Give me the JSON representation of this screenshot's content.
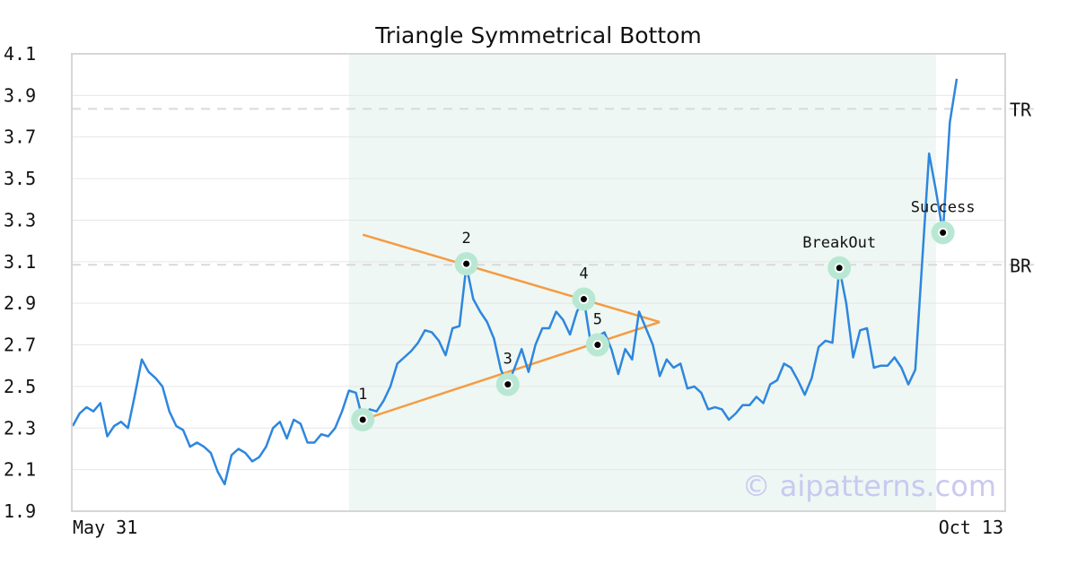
{
  "chart_data": {
    "type": "line",
    "title": "Triangle Symmetrical Bottom",
    "watermark": "© aipatterns.com",
    "ylim": [
      1.9,
      4.1
    ],
    "y_ticks": [
      "4.1",
      "3.9",
      "3.7",
      "3.5",
      "3.3",
      "3.1",
      "2.9",
      "2.7",
      "2.5",
      "2.3",
      "2.1",
      "1.9"
    ],
    "x_tick_labels": {
      "start": "May 31",
      "end": "Oct 13"
    },
    "grid": true,
    "series_color": "#2e86de",
    "values": [
      2.31,
      2.37,
      2.4,
      2.38,
      2.42,
      2.26,
      2.31,
      2.33,
      2.3,
      2.46,
      2.63,
      2.57,
      2.54,
      2.5,
      2.38,
      2.31,
      2.29,
      2.21,
      2.23,
      2.21,
      2.18,
      2.09,
      2.03,
      2.17,
      2.2,
      2.18,
      2.14,
      2.16,
      2.21,
      2.3,
      2.33,
      2.25,
      2.34,
      2.32,
      2.23,
      2.23,
      2.27,
      2.26,
      2.3,
      2.38,
      2.48,
      2.47,
      2.34,
      2.39,
      2.38,
      2.43,
      2.5,
      2.61,
      2.64,
      2.67,
      2.71,
      2.77,
      2.76,
      2.72,
      2.65,
      2.78,
      2.79,
      3.08,
      2.92,
      2.86,
      2.81,
      2.73,
      2.58,
      2.51,
      2.59,
      2.68,
      2.57,
      2.7,
      2.78,
      2.78,
      2.86,
      2.82,
      2.75,
      2.86,
      2.92,
      2.71,
      2.74,
      2.76,
      2.68,
      2.56,
      2.68,
      2.63,
      2.86,
      2.78,
      2.7,
      2.55,
      2.63,
      2.59,
      2.61,
      2.49,
      2.5,
      2.47,
      2.39,
      2.4,
      2.39,
      2.34,
      2.37,
      2.41,
      2.41,
      2.45,
      2.42,
      2.51,
      2.53,
      2.61,
      2.59,
      2.53,
      2.46,
      2.54,
      2.69,
      2.72,
      2.71,
      3.07,
      2.9,
      2.64,
      2.77,
      2.78,
      2.59,
      2.6,
      2.6,
      2.64,
      2.59,
      2.51,
      2.58,
      3.1,
      3.62,
      3.44,
      3.24,
      3.77,
      3.98
    ],
    "pattern_region": {
      "start_index": 40,
      "end_index": 125,
      "color": "#eef7f3"
    },
    "horizontal_lines": [
      {
        "label": "TR",
        "y": 3.835,
        "color": "#d9d9d9"
      },
      {
        "label": "BR",
        "y": 3.085,
        "color": "#d9d9d9"
      }
    ],
    "trend_lines": {
      "color": "#f59b42",
      "upper": [
        {
          "x": 42,
          "y": 3.23
        },
        {
          "x": 85,
          "y": 2.81
        }
      ],
      "lower": [
        {
          "x": 42,
          "y": 2.34
        },
        {
          "x": 85,
          "y": 2.81
        }
      ]
    },
    "marker_color": "#b8e8d3",
    "points": [
      {
        "label": "1",
        "x": 42,
        "y": 2.34
      },
      {
        "label": "2",
        "x": 57,
        "y": 3.09
      },
      {
        "label": "3",
        "x": 63,
        "y": 2.51
      },
      {
        "label": "4",
        "x": 74,
        "y": 2.92
      },
      {
        "label": "5",
        "x": 76,
        "y": 2.7
      },
      {
        "label": "BreakOut",
        "x": 111,
        "y": 3.07
      },
      {
        "label": "Success",
        "x": 126,
        "y": 3.24
      }
    ]
  }
}
